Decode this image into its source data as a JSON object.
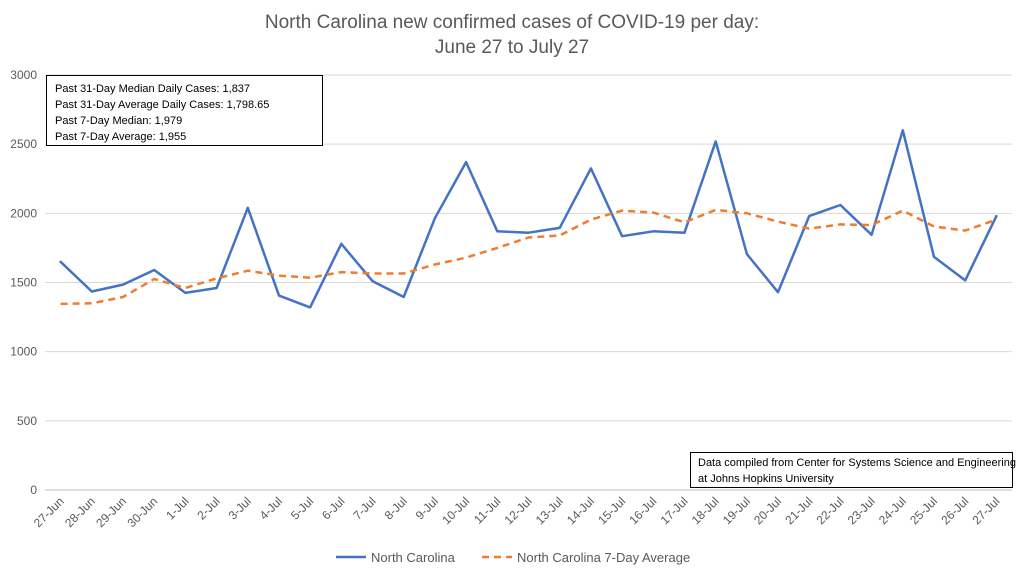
{
  "chart_data": {
    "type": "line",
    "title": [
      "North Carolina new confirmed cases of COVID-19 per day:",
      "June 27 to July 27"
    ],
    "categories": [
      "27-Jun",
      "28-Jun",
      "29-Jun",
      "30-Jun",
      "1-Jul",
      "2-Jul",
      "3-Jul",
      "4-Jul",
      "5-Jul",
      "6-Jul",
      "7-Jul",
      "8-Jul",
      "9-Jul",
      "10-Jul",
      "11-Jul",
      "12-Jul",
      "13-Jul",
      "14-Jul",
      "15-Jul",
      "16-Jul",
      "17-Jul",
      "18-Jul",
      "19-Jul",
      "20-Jul",
      "21-Jul",
      "22-Jul",
      "23-Jul",
      "24-Jul",
      "25-Jul",
      "26-Jul",
      "27-Jul"
    ],
    "yticks": [
      0,
      500,
      1000,
      1500,
      2000,
      2500,
      3000
    ],
    "ylim": [
      0,
      3000
    ],
    "grid": true,
    "legend_position": "bottom",
    "series": [
      {
        "name": "North Carolina",
        "color": "#4472C4",
        "dash": false,
        "values": [
          1650,
          1435,
          1485,
          1590,
          1425,
          1460,
          2040,
          1405,
          1320,
          1780,
          1510,
          1395,
          1965,
          2370,
          1870,
          1860,
          1895,
          2325,
          1835,
          1870,
          1860,
          2520,
          1705,
          1430,
          1980,
          2060,
          1845,
          2600,
          1685,
          1515,
          1980
        ]
      },
      {
        "name": "North Carolina 7-Day Average",
        "color": "#ED7D31",
        "dash": true,
        "values": [
          1345,
          1350,
          1395,
          1525,
          1460,
          1530,
          1585,
          1550,
          1535,
          1575,
          1565,
          1565,
          1630,
          1680,
          1750,
          1825,
          1840,
          1955,
          2020,
          2005,
          1935,
          2025,
          2000,
          1940,
          1890,
          1920,
          1915,
          2020,
          1905,
          1875,
          1955
        ]
      }
    ],
    "annotations": [
      {
        "position": "top-left",
        "lines": [
          "Past 31-Day Median Daily Cases: 1,837",
          "Past 31-Day Average Daily Cases: 1,798.65",
          "Past 7-Day Median: 1,979",
          "Past 7-Day Average: 1,955"
        ]
      },
      {
        "position": "bottom-right",
        "lines": [
          "Data compiled from Center for Systems Science and Engineering",
          "at Johns Hopkins University"
        ]
      }
    ]
  }
}
